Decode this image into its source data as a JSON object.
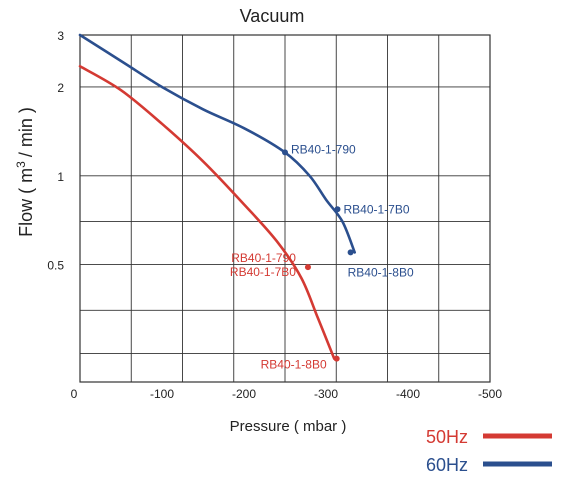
{
  "chart_data": {
    "type": "line",
    "title": "Vacuum",
    "xlabel": "Pressure ( mbar )",
    "ylabel_main": "Flow ( m",
    "ylabel_sup": "3",
    "ylabel_tail": "/ min )",
    "x_scale": "linear",
    "y_scale": "log",
    "xlim": [
      0,
      -400
    ],
    "ylim": [
      0.2,
      3
    ],
    "x_ticks": [
      {
        "value": 0,
        "label": "0"
      },
      {
        "value": -100,
        "label": "-100"
      },
      {
        "value": -200,
        "label": "-200"
      },
      {
        "value": -300,
        "label": "-300"
      },
      {
        "value": -400,
        "label": "-400"
      },
      {
        "value": -500,
        "label": "-500"
      }
    ],
    "y_ticks": [
      {
        "value": 3,
        "label": "3"
      },
      {
        "value": 2,
        "label": "2"
      },
      {
        "value": 1,
        "label": "1"
      },
      {
        "value": 0.5,
        "label": "0.5"
      }
    ],
    "grid": true,
    "legend_position": "bottom-right",
    "series": [
      {
        "name": "50Hz",
        "color": "#d43a33",
        "x": [
          0,
          -50,
          -100,
          -150,
          -200,
          -240,
          -270,
          -290,
          -310
        ],
        "y": [
          2.35,
          1.95,
          1.5,
          1.12,
          0.8,
          0.6,
          0.45,
          0.33,
          0.24
        ],
        "points": [
          {
            "x": -278,
            "y": 0.49,
            "labels": [
              "RB40-1-790",
              "RB40-1-7B0"
            ]
          },
          {
            "x": -313,
            "y": 0.24,
            "labels": [
              "RB40-1-8B0"
            ]
          }
        ]
      },
      {
        "name": "60Hz",
        "color": "#2b4f8e",
        "x": [
          0,
          -50,
          -100,
          -150,
          -200,
          -250,
          -280,
          -300,
          -320,
          -335
        ],
        "y": [
          3.0,
          2.45,
          2.0,
          1.68,
          1.45,
          1.2,
          1.0,
          0.83,
          0.7,
          0.55
        ],
        "points": [
          {
            "x": -250,
            "y": 1.2,
            "labels": [
              "RB40-1-790"
            ]
          },
          {
            "x": -314,
            "y": 0.77,
            "labels": [
              "RB40-1-7B0"
            ]
          },
          {
            "x": -330,
            "y": 0.55,
            "labels": [
              "RB40-1-8B0"
            ]
          }
        ]
      }
    ]
  }
}
